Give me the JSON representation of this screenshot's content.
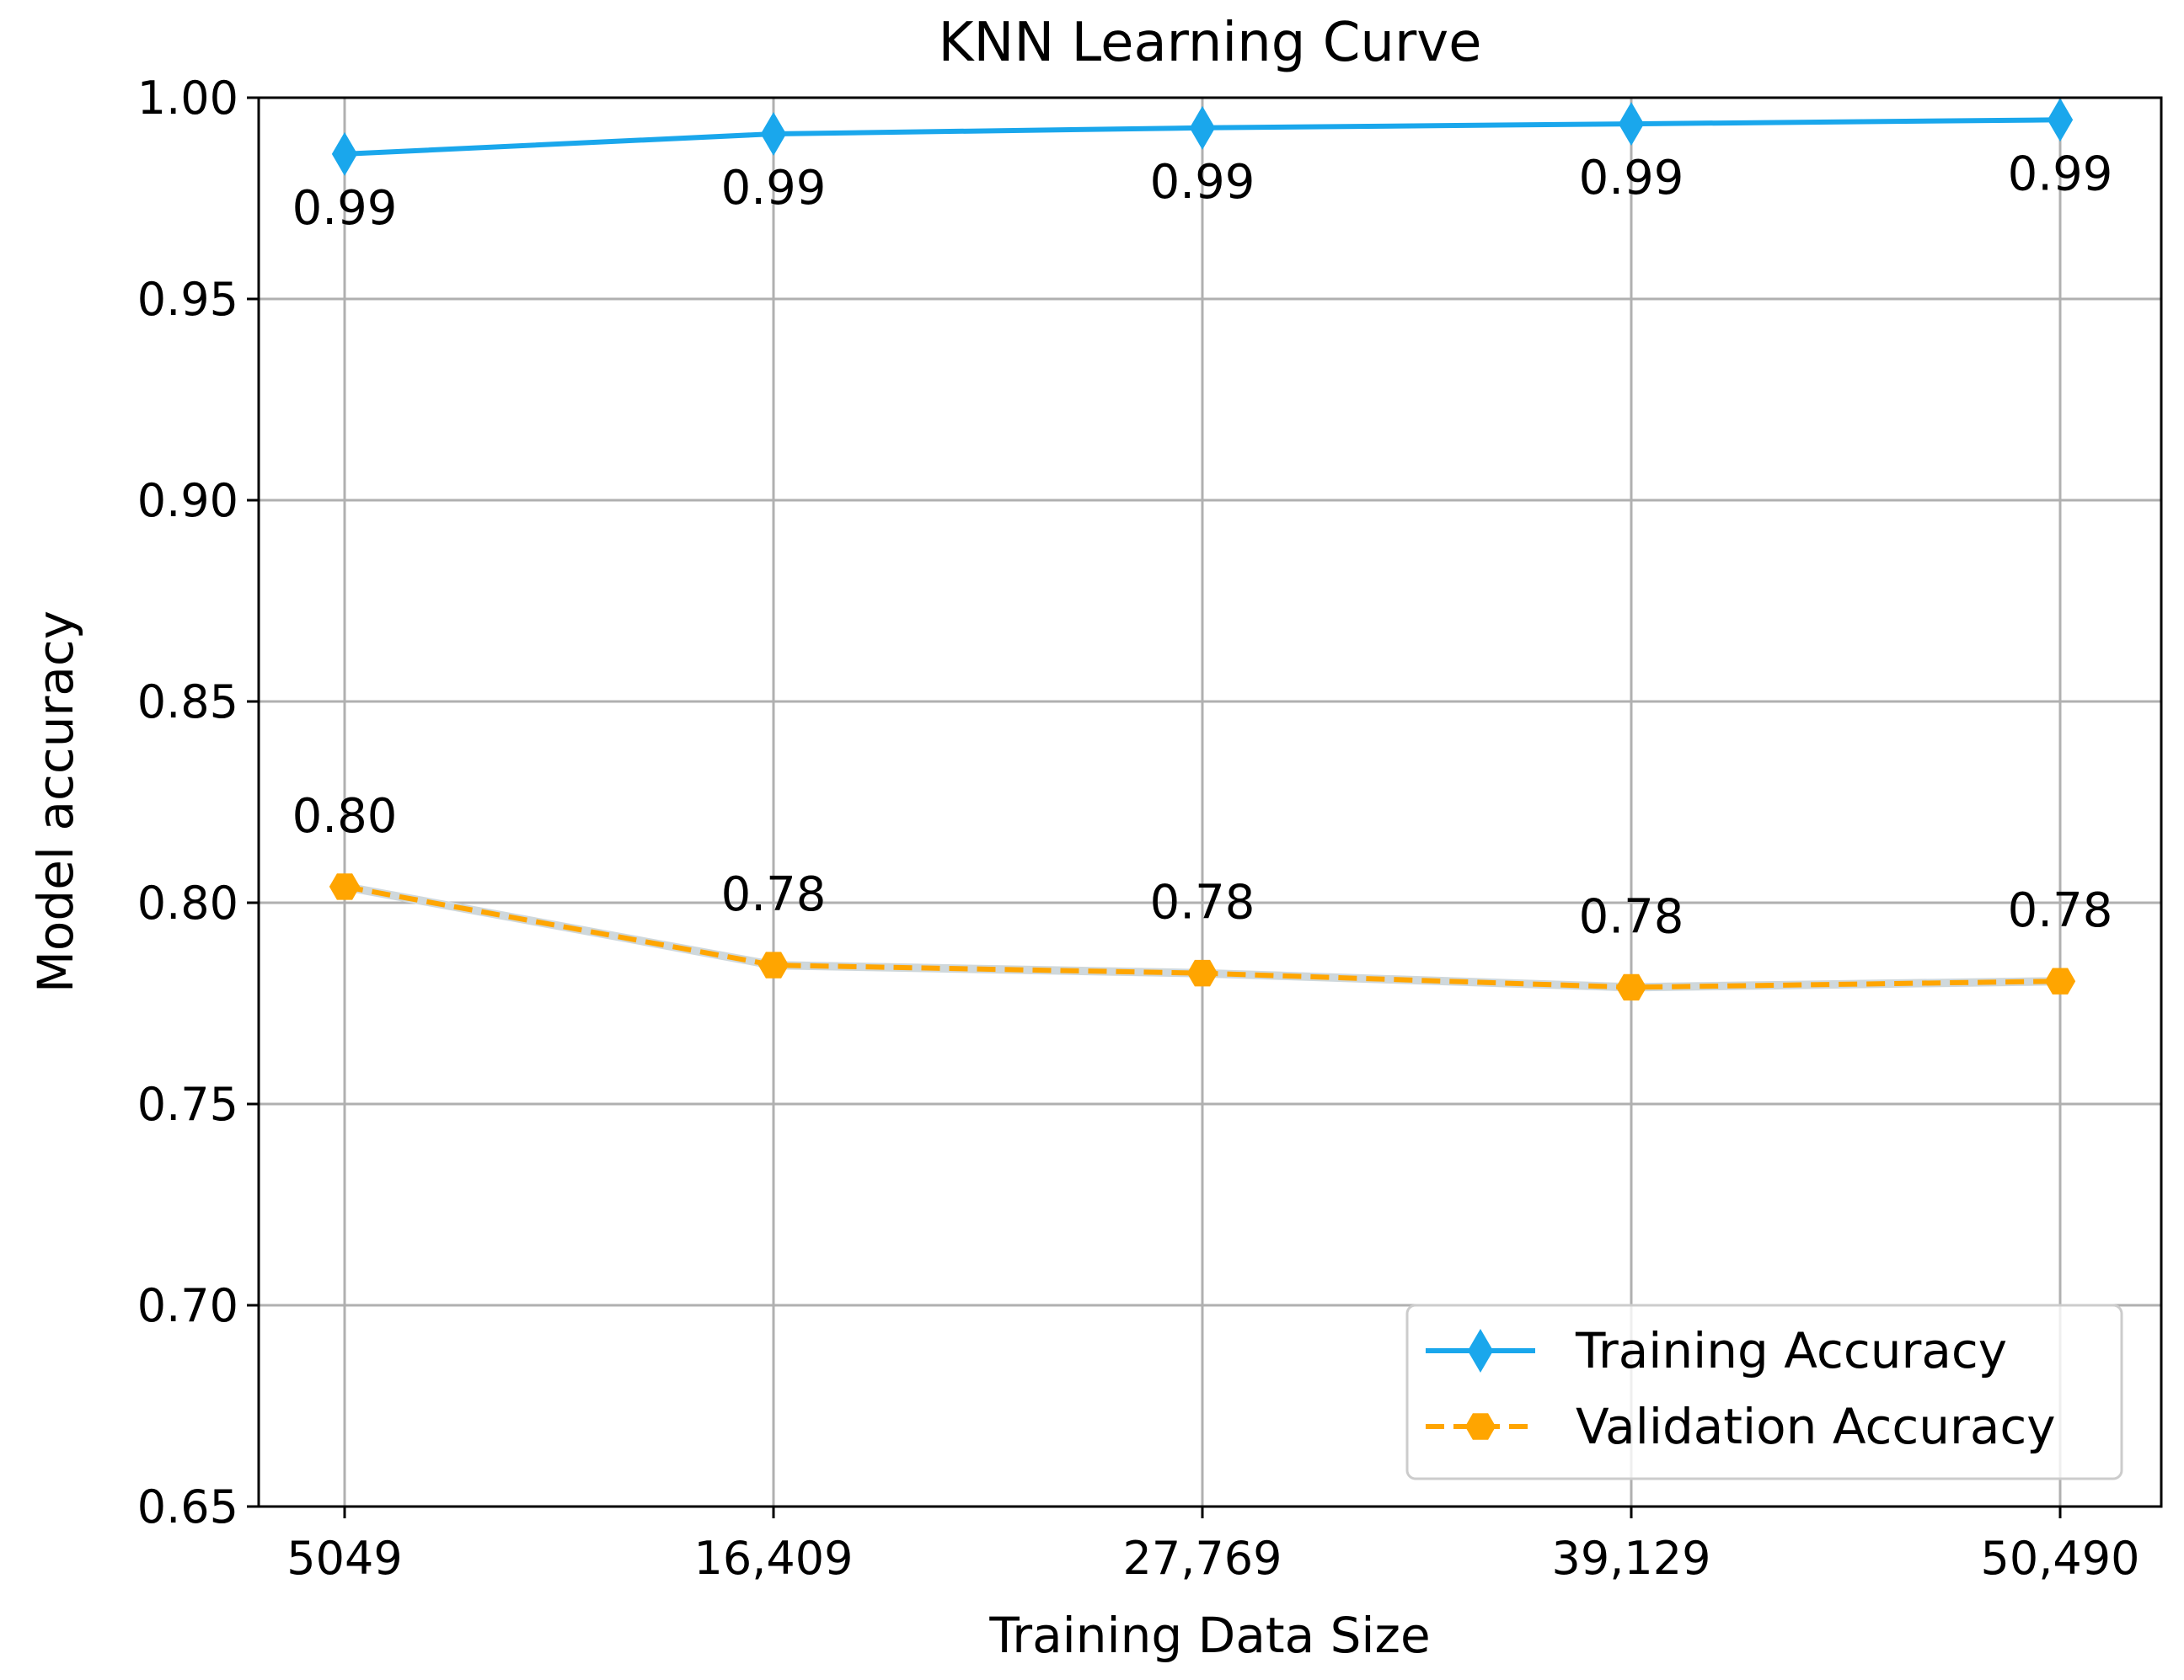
{
  "chart_data": {
    "type": "line",
    "title": "KNN Learning Curve",
    "xlabel": "Training Data Size",
    "ylabel": "Model accuracy",
    "categories": [
      "5049",
      "16,409",
      "27,769",
      "39,129",
      "50,490"
    ],
    "ylim": [
      0.65,
      1.0
    ],
    "yticks": [
      "0.65",
      "0.70",
      "0.75",
      "0.80",
      "0.85",
      "0.90",
      "0.95",
      "1.00"
    ],
    "grid": true,
    "legend_position": "bottom-right",
    "series": [
      {
        "name": "Training Accuracy",
        "values": [
          0.986,
          0.991,
          0.9925,
          0.9935,
          0.9945
        ],
        "labels": [
          "0.99",
          "0.99",
          "0.99",
          "0.99",
          "0.99"
        ],
        "label_position": "below",
        "color": "#1aa7ec",
        "line_style": "solid",
        "marker": "thin-diamond"
      },
      {
        "name": "Validation Accuracy",
        "values": [
          0.804,
          0.7845,
          0.7825,
          0.779,
          0.7805
        ],
        "labels": [
          "0.80",
          "0.78",
          "0.78",
          "0.78",
          "0.78"
        ],
        "label_position": "above",
        "color": "#ffa500",
        "line_style": "dashed",
        "marker": "hexagon"
      }
    ]
  }
}
